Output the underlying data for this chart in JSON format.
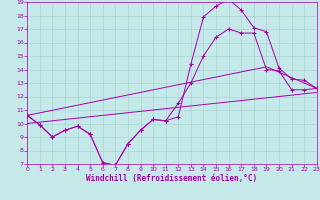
{
  "background_color": "#c5e8e8",
  "grid_color": "#aad4d4",
  "line_color": "#aa00aa",
  "xlabel": "Windchill (Refroidissement éolien,°C)",
  "xlim": [
    0,
    23
  ],
  "ylim": [
    7,
    19
  ],
  "x_ticks": [
    0,
    1,
    2,
    3,
    4,
    5,
    6,
    7,
    8,
    9,
    10,
    11,
    12,
    13,
    14,
    15,
    16,
    17,
    18,
    19,
    20,
    21,
    22,
    23
  ],
  "y_ticks": [
    7,
    8,
    9,
    10,
    11,
    12,
    13,
    14,
    15,
    16,
    17,
    18,
    19
  ],
  "lines": [
    {
      "x": [
        0,
        1,
        2,
        3,
        4,
        5,
        6,
        7,
        8,
        9,
        10,
        11,
        12,
        13,
        14,
        15,
        16,
        17,
        18,
        19,
        20,
        21,
        22,
        23
      ],
      "y": [
        10.6,
        9.9,
        9.0,
        9.5,
        9.8,
        9.2,
        7.1,
        6.9,
        8.5,
        9.5,
        10.3,
        10.2,
        10.5,
        14.4,
        17.9,
        18.7,
        19.2,
        18.4,
        17.1,
        16.8,
        14.1,
        13.3,
        13.2,
        12.6
      ],
      "marker": true
    },
    {
      "x": [
        0,
        1,
        2,
        3,
        4,
        5,
        6,
        7,
        8,
        9,
        10,
        11,
        12,
        13,
        14,
        15,
        16,
        17,
        18,
        19,
        20,
        21,
        22,
        23
      ],
      "y": [
        10.6,
        9.9,
        9.0,
        9.5,
        9.8,
        9.2,
        7.1,
        6.9,
        8.5,
        9.5,
        10.3,
        10.2,
        11.5,
        13.0,
        15.0,
        16.4,
        17.0,
        16.7,
        16.7,
        14.0,
        13.9,
        12.5,
        12.5,
        12.6
      ],
      "marker": true
    },
    {
      "x": [
        0,
        19,
        23
      ],
      "y": [
        10.6,
        14.2,
        12.6
      ],
      "marker": false
    },
    {
      "x": [
        0,
        23
      ],
      "y": [
        10.0,
        12.3
      ],
      "marker": false
    }
  ]
}
